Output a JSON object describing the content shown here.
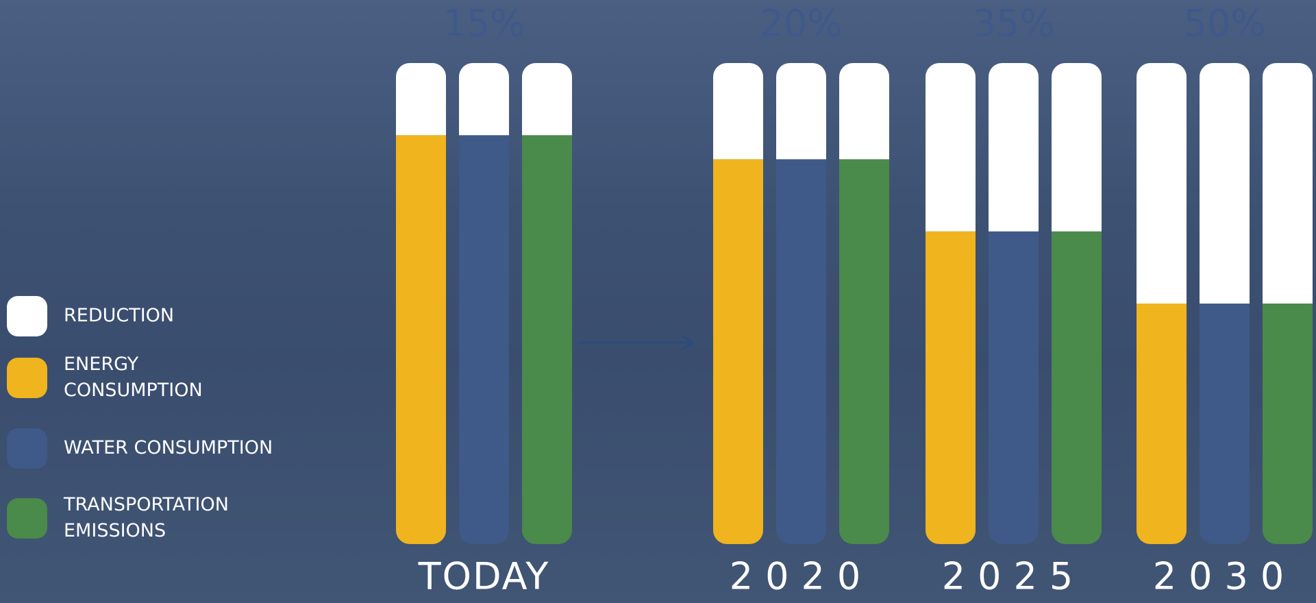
{
  "chart_data": {
    "type": "grouped-stacked-bar",
    "categories": [
      "TODAY",
      "2020",
      "2025",
      "2030"
    ],
    "series": [
      {
        "name": "REDUCTION",
        "color": "#ffffff",
        "values": [
          15,
          20,
          35,
          50
        ],
        "value_labels": [
          "15%",
          "20%",
          "35%",
          "50%"
        ]
      },
      {
        "name": "ENERGY CONSUMPTION",
        "color": "#f0b41e",
        "values": [
          85,
          80,
          65,
          50
        ]
      },
      {
        "name": "WATER CONSUMPTION",
        "color": "#3f5a88",
        "values": [
          85,
          80,
          65,
          50
        ]
      },
      {
        "name": "TRANSPORTATION EMISSIONS",
        "color": "#4a8a4a",
        "values": [
          85,
          80,
          65,
          50
        ]
      }
    ]
  }
}
